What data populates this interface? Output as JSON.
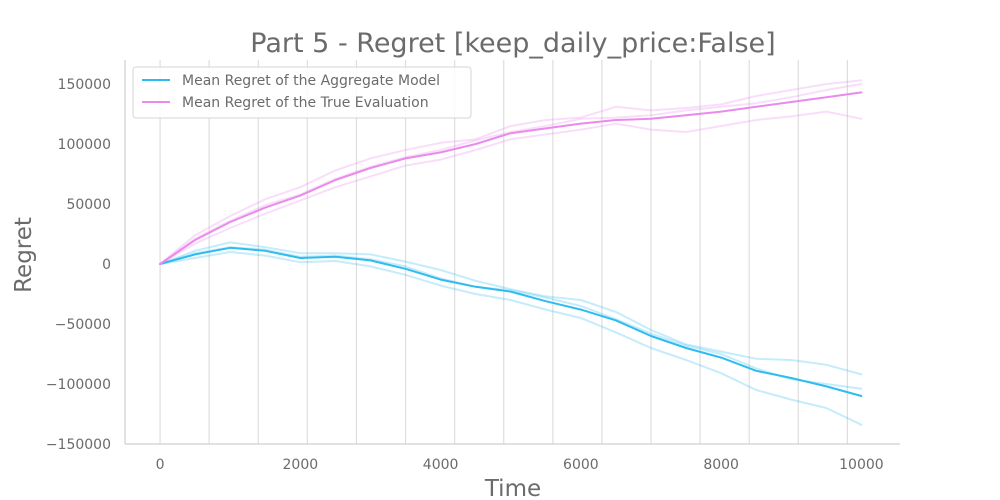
{
  "chart_data": {
    "type": "line",
    "title": "Part 5 - Regret [keep_daily_price:False]",
    "xlabel": "Time",
    "ylabel": "Regret",
    "xlim": [
      -500,
      10550
    ],
    "ylim": [
      -150000,
      170000
    ],
    "x_ticks": [
      0,
      2000,
      4000,
      6000,
      8000,
      10000
    ],
    "y_ticks": [
      -150000,
      -100000,
      -50000,
      0,
      50000,
      100000,
      150000
    ],
    "vertical_grid_x": [
      0,
      700,
      1400,
      2100,
      2800,
      3500,
      4200,
      4900,
      5600,
      6300,
      7000,
      7700,
      8400,
      9100,
      9800
    ],
    "grid": "vertical lines only",
    "legend_position": "top-left",
    "x": [
      0,
      500,
      1000,
      1500,
      2000,
      2500,
      3000,
      3500,
      4000,
      4500,
      5000,
      5500,
      6000,
      6500,
      7000,
      7500,
      8000,
      8500,
      9000,
      9500,
      10000
    ],
    "series": [
      {
        "name": "Mean Regret of the Aggregate Model",
        "color": "#2ebcf0",
        "values": [
          0,
          8000,
          13500,
          11000,
          5000,
          6000,
          3000,
          -4000,
          -13000,
          -19000,
          -23000,
          -31000,
          -38000,
          -47000,
          -60000,
          -70000,
          -78000,
          -89000,
          -95000,
          -102000,
          -110000
        ],
        "runs": [
          [
            0,
            11000,
            18000,
            14000,
            9000,
            9000,
            8000,
            2000,
            -5000,
            -14000,
            -21000,
            -27000,
            -30000,
            -40000,
            -55000,
            -67000,
            -73000,
            -79000,
            -80000,
            -84000,
            -92000
          ],
          [
            0,
            5000,
            10000,
            7000,
            1500,
            2500,
            -2000,
            -9000,
            -18000,
            -25000,
            -30000,
            -38000,
            -45000,
            -57000,
            -70000,
            -80000,
            -91000,
            -105000,
            -113000,
            -120000,
            -134000
          ],
          [
            0,
            9000,
            14000,
            12000,
            6000,
            7000,
            4000,
            -2000,
            -12000,
            -19000,
            -22000,
            -28000,
            -35000,
            -46000,
            -58000,
            -68000,
            -75000,
            -87000,
            -96000,
            -100000,
            -104000
          ]
        ]
      },
      {
        "name": "Mean Regret of the True Evaluation",
        "color": "#ea8aec",
        "values": [
          0,
          20000,
          35000,
          47000,
          57000,
          70000,
          80000,
          88000,
          93000,
          100000,
          109000,
          113000,
          117000,
          120000,
          121000,
          124000,
          127000,
          131000,
          135000,
          139000,
          143000
        ],
        "runs": [
          [
            0,
            24000,
            40000,
            54000,
            64000,
            78000,
            88000,
            95000,
            101000,
            104000,
            115000,
            120000,
            122000,
            131000,
            128000,
            130000,
            133000,
            140000,
            145000,
            150000,
            153000
          ],
          [
            0,
            17000,
            30000,
            42000,
            53000,
            64000,
            73000,
            82000,
            87000,
            95000,
            104000,
            108000,
            112000,
            117000,
            112000,
            110000,
            115000,
            120000,
            123000,
            127000,
            121000
          ],
          [
            0,
            21000,
            36000,
            49000,
            58000,
            71000,
            81000,
            89000,
            95000,
            103000,
            110000,
            115000,
            121000,
            122000,
            124000,
            128000,
            131000,
            134000,
            139000,
            145000,
            150000
          ]
        ]
      }
    ]
  }
}
